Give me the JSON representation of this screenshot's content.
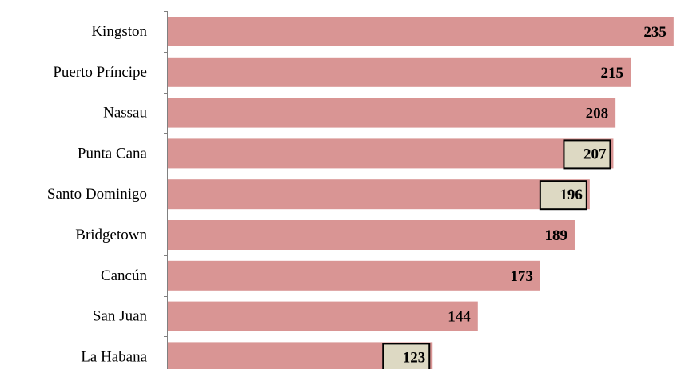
{
  "chart_data": {
    "type": "bar",
    "orientation": "horizontal",
    "categories": [
      "Kingston",
      "Puerto Príncipe",
      "Nassau",
      "Punta Cana",
      "Santo Dominigo",
      "Bridgetown",
      "Cancún",
      "San Juan",
      "La Habana"
    ],
    "values": [
      235,
      215,
      208,
      207,
      196,
      189,
      173,
      144,
      123
    ],
    "highlighted": [
      "Punta Cana",
      "Santo Dominigo",
      "La Habana"
    ],
    "title": "",
    "xlabel": "",
    "ylabel": "",
    "xlim": [
      0,
      235
    ],
    "grid": false,
    "legend": "none",
    "data_labels": true,
    "colors": {
      "bar": "#d99594",
      "highlight_box": "#ddd9c3",
      "axis": "#808080",
      "text": "#000000"
    }
  }
}
